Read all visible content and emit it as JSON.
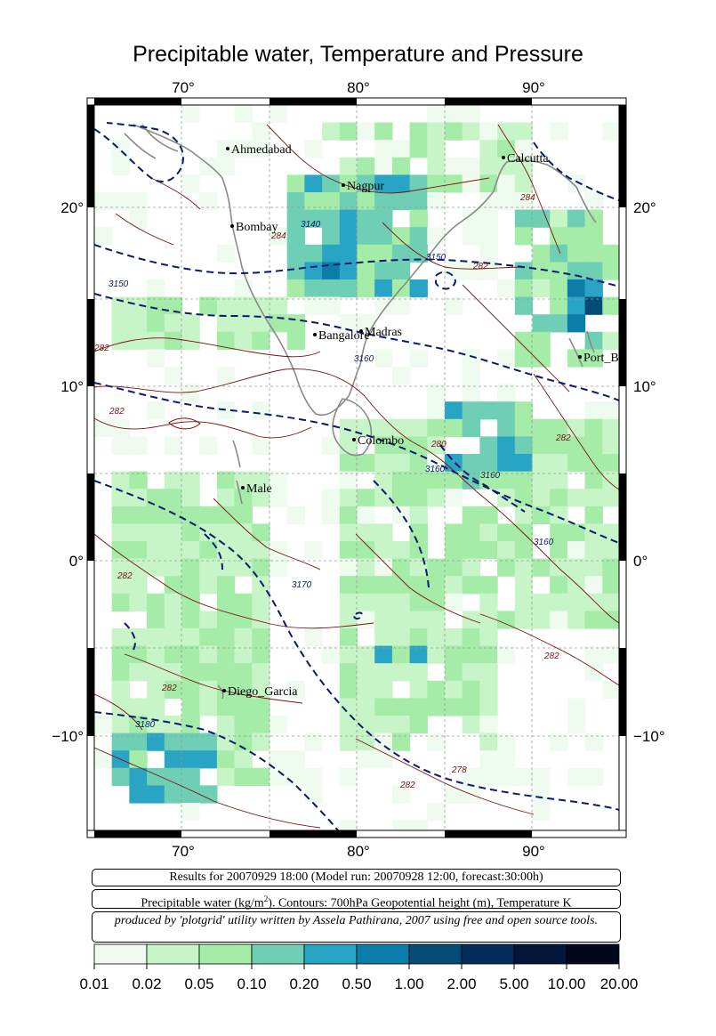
{
  "title": "Precipitable water, Temperature and Pressure",
  "axes": {
    "lon_ticks": [
      "70°",
      "80°",
      "90°"
    ],
    "lat_ticks": [
      "20°",
      "10°",
      "0°",
      "−10°"
    ]
  },
  "cities": [
    {
      "name": "Ahmedabad"
    },
    {
      "name": "Calcutta"
    },
    {
      "name": "Nagpur"
    },
    {
      "name": "Bombay"
    },
    {
      "name": "Bangalore"
    },
    {
      "name": "Madras"
    },
    {
      "name": "Port_B"
    },
    {
      "name": "Colombo"
    },
    {
      "name": "Male"
    },
    {
      "name": "Diego_Garcia"
    }
  ],
  "contour_labels": [
    "3150",
    "3150",
    "3140",
    "3160",
    "3160",
    "3160",
    "3160",
    "3170",
    "3180",
    "282",
    "282",
    "282",
    "282",
    "282",
    "282",
    "282",
    "282",
    "284",
    "284",
    "280",
    "278"
  ],
  "info": {
    "line1": "Results for 20070929 18:00 (Model run: 20070928 12:00, forecast:30:00h)",
    "line2_pre": "Precipitable water (kg/m",
    "line2_sup": "2",
    "line2_post": ").  Contours: 700hPa Geopotential height (m), Temperature K",
    "line3": "produced by 'plotgrid' utility written by Assela Pathirana, 2007 using free and open source tools."
  },
  "colorbar": {
    "labels": [
      "0.01",
      "0.02",
      "0.05",
      "0.10",
      "0.20",
      "0.50",
      "1.00",
      "2.00",
      "5.00",
      "10.00",
      "20.00"
    ],
    "colors": [
      "#eefbee",
      "#c8f5c8",
      "#a4eca8",
      "#6ecfb4",
      "#2aa4c4",
      "#0c7ca8",
      "#044c78",
      "#032c58",
      "#02163a",
      "#01081e"
    ]
  }
}
